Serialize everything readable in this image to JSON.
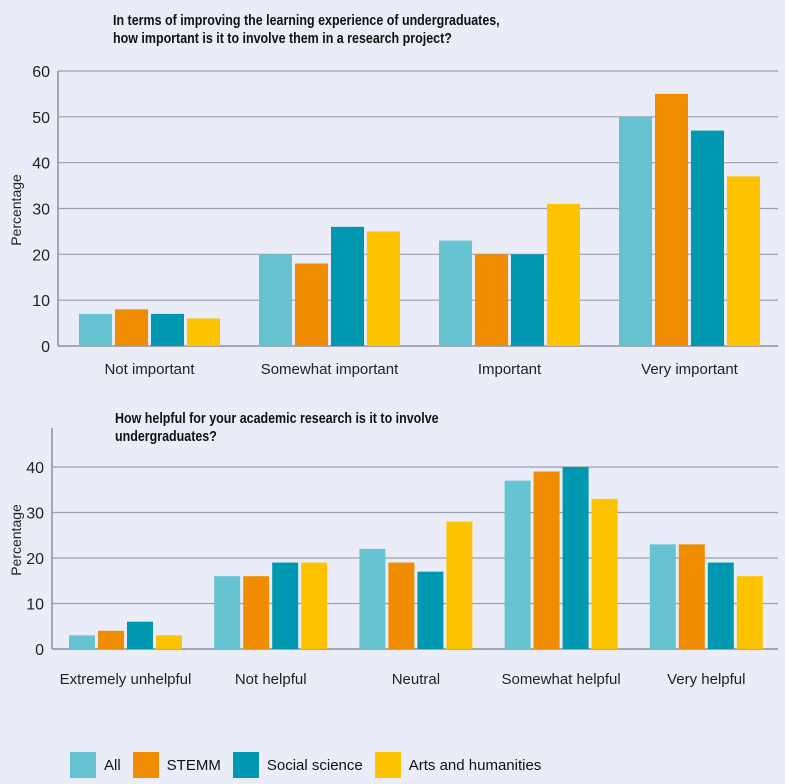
{
  "colors": {
    "All": "#66c3d2",
    "STEMM": "#f08c00",
    "Social science": "#0098b0",
    "Arts and humanities": "#fdc300"
  },
  "legend": [
    "All",
    "STEMM",
    "Social science",
    "Arts and humanities"
  ],
  "chart_data": [
    {
      "type": "bar",
      "title_line1": "In terms of improving the learning experience of undergraduates,",
      "title_line2": "how important is it to involve them in a research project?",
      "ylabel": "Percentage",
      "ylim": [
        0,
        60
      ],
      "yticks": [
        0,
        10,
        20,
        30,
        40,
        50,
        60
      ],
      "grid": true,
      "categories": [
        "Not important",
        "Somewhat important",
        "Important",
        "Very important"
      ],
      "series": [
        {
          "name": "All",
          "values": [
            7,
            20,
            23,
            50
          ]
        },
        {
          "name": "STEMM",
          "values": [
            8,
            18,
            20,
            55
          ]
        },
        {
          "name": "Social science",
          "values": [
            7,
            26,
            20,
            47
          ]
        },
        {
          "name": "Arts and humanities",
          "values": [
            6,
            25,
            31,
            37
          ]
        }
      ]
    },
    {
      "type": "bar",
      "title_line1": "How helpful for your academic research is it to involve",
      "title_line2": "undergraduates?",
      "ylabel": "Percentage",
      "ylim": [
        0,
        40
      ],
      "yticks": [
        0,
        10,
        20,
        30,
        40
      ],
      "grid": true,
      "categories": [
        "Extremely unhelpful",
        "Not helpful",
        "Neutral",
        "Somewhat helpful",
        "Very helpful"
      ],
      "series": [
        {
          "name": "All",
          "values": [
            3,
            16,
            22,
            37,
            23
          ]
        },
        {
          "name": "STEMM",
          "values": [
            4,
            16,
            19,
            39,
            23
          ]
        },
        {
          "name": "Social science",
          "values": [
            6,
            19,
            17,
            40,
            19
          ]
        },
        {
          "name": "Arts and humanities",
          "values": [
            3,
            19,
            28,
            33,
            16
          ]
        }
      ]
    }
  ]
}
